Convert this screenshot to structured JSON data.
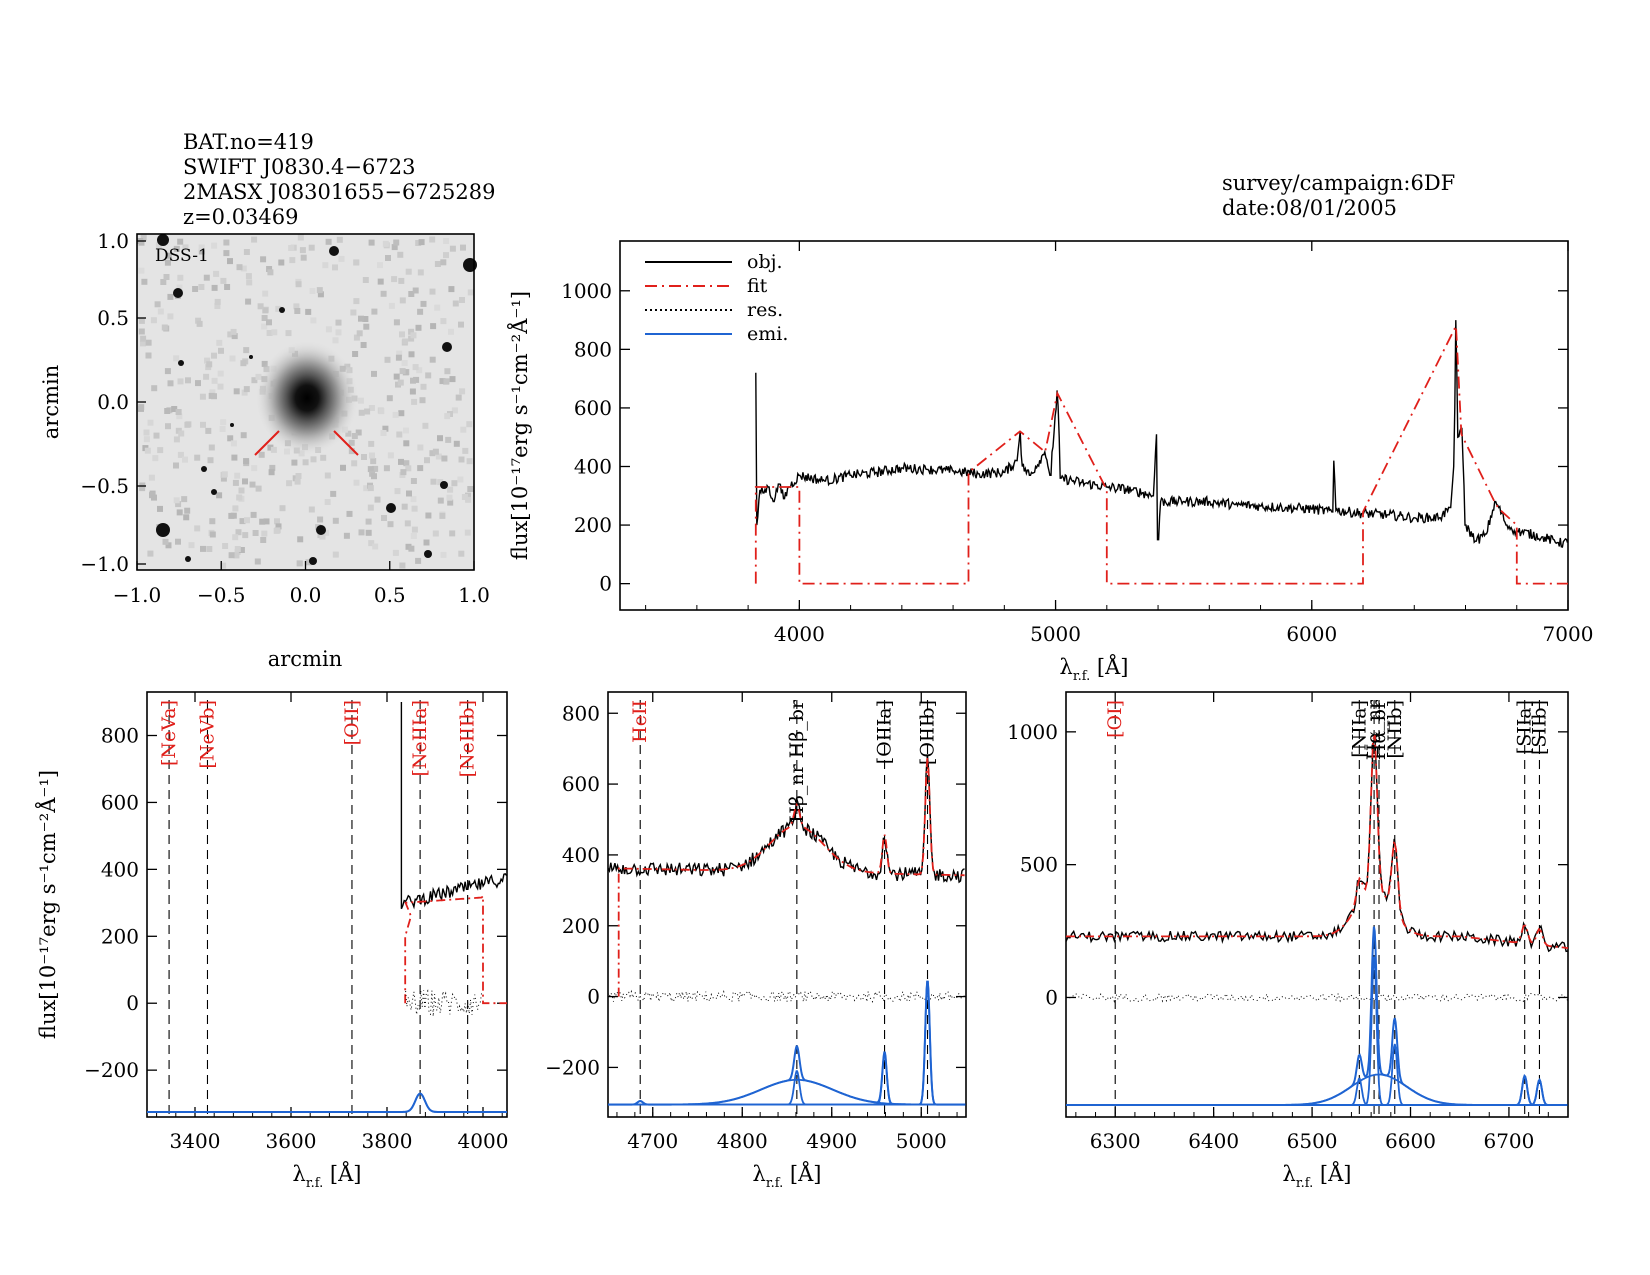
{
  "header_left": {
    "bat_no": "BAT.no=419",
    "swift_name": "SWIFT J0830.4−6723",
    "twomass_name": "2MASX J08301655−6725289",
    "redshift": "z=0.03469"
  },
  "header_right": {
    "survey": "survey/campaign:6DF",
    "date": "date:08/01/2005"
  },
  "colors": {
    "object": "#000000",
    "fit": "#e0201b",
    "residual": "#000000",
    "emission": "#1f64d2",
    "fit_label": "#e0201b"
  },
  "image_panel": {
    "label": "DSS-1",
    "xlabel": "arcmin",
    "ylabel": "arcmin",
    "xticks": [
      "−1.0",
      "−0.5",
      "0.0",
      "0.5",
      "1.0"
    ],
    "yticks": [
      "1.0",
      "0.5",
      "0.0",
      "−0.5",
      "−1.0"
    ]
  },
  "chart_data": [
    {
      "id": "full_spectrum",
      "type": "line",
      "xlabel": "λr.f. [Å]",
      "ylabel": "flux[10⁻¹⁷erg s⁻¹cm⁻²Å⁻¹]",
      "xlim": [
        3300,
        7000
      ],
      "ylim": [
        -90,
        1170
      ],
      "xticks": [
        4000,
        5000,
        6000,
        7000
      ],
      "yticks": [
        0,
        200,
        400,
        600,
        800,
        1000
      ],
      "legend": [
        "obj.",
        "fit",
        "res.",
        "emi."
      ],
      "legend_position": "top-left",
      "object_series": [
        [
          3830,
          720
        ],
        [
          3835,
          200
        ],
        [
          3845,
          320
        ],
        [
          3860,
          310
        ],
        [
          3880,
          330
        ],
        [
          3900,
          280
        ],
        [
          3920,
          340
        ],
        [
          3940,
          290
        ],
        [
          3960,
          330
        ],
        [
          4000,
          370
        ],
        [
          4100,
          350
        ],
        [
          4200,
          370
        ],
        [
          4300,
          380
        ],
        [
          4400,
          395
        ],
        [
          4500,
          390
        ],
        [
          4600,
          385
        ],
        [
          4700,
          375
        ],
        [
          4800,
          380
        ],
        [
          4850,
          420
        ],
        [
          4861,
          520
        ],
        [
          4870,
          400
        ],
        [
          4900,
          370
        ],
        [
          4959,
          450
        ],
        [
          4980,
          370
        ],
        [
          5007,
          660
        ],
        [
          5020,
          360
        ],
        [
          5100,
          345
        ],
        [
          5200,
          330
        ],
        [
          5300,
          320
        ],
        [
          5380,
          300
        ],
        [
          5395,
          510
        ],
        [
          5400,
          150
        ],
        [
          5410,
          280
        ],
        [
          5500,
          280
        ],
        [
          5600,
          280
        ],
        [
          5700,
          270
        ],
        [
          5800,
          265
        ],
        [
          5900,
          260
        ],
        [
          6000,
          255
        ],
        [
          6080,
          245
        ],
        [
          6087,
          420
        ],
        [
          6095,
          250
        ],
        [
          6200,
          240
        ],
        [
          6300,
          235
        ],
        [
          6400,
          225
        ],
        [
          6500,
          225
        ],
        [
          6540,
          260
        ],
        [
          6555,
          400
        ],
        [
          6563,
          900
        ],
        [
          6570,
          500
        ],
        [
          6584,
          530
        ],
        [
          6600,
          200
        ],
        [
          6640,
          145
        ],
        [
          6680,
          170
        ],
        [
          6716,
          280
        ],
        [
          6731,
          260
        ],
        [
          6760,
          200
        ],
        [
          6800,
          180
        ],
        [
          6900,
          160
        ],
        [
          6960,
          140
        ],
        [
          7000,
          140
        ]
      ],
      "fit_series": [
        [
          3830,
          0
        ],
        [
          3830,
          330
        ],
        [
          4000,
          330
        ],
        [
          4000,
          0
        ],
        [
          4660,
          0
        ],
        [
          4660,
          380
        ],
        [
          4861,
          520
        ],
        [
          4959,
          450
        ],
        [
          5007,
          650
        ],
        [
          5200,
          320
        ],
        [
          5200,
          0
        ],
        [
          6200,
          0
        ],
        [
          6200,
          245
        ],
        [
          6563,
          880
        ],
        [
          6584,
          510
        ],
        [
          6716,
          275
        ],
        [
          6731,
          255
        ],
        [
          6800,
          200
        ],
        [
          6800,
          0
        ],
        [
          7000,
          0
        ]
      ]
    },
    {
      "id": "neon_region",
      "type": "line",
      "xlabel": "λr.f. [Å]",
      "ylabel": "flux[10⁻¹⁷erg s⁻¹cm⁻²Å⁻¹]",
      "xlim": [
        3300,
        4050
      ],
      "ylim": [
        -340,
        930
      ],
      "xticks": [
        3400,
        3600,
        3800,
        4000
      ],
      "yticks": [
        -200,
        0,
        200,
        400,
        600,
        800
      ],
      "lines": [
        {
          "label": "[NeVa]",
          "x": 3346,
          "color": "red"
        },
        {
          "label": "[NeVb]",
          "x": 3426,
          "color": "red"
        },
        {
          "label": "[OII]",
          "x": 3727,
          "color": "red"
        },
        {
          "label": "[NeIIIa]",
          "x": 3869,
          "color": "red"
        },
        {
          "label": "[NeIIIb]",
          "x": 3968,
          "color": "red"
        }
      ],
      "emission_peaks": [
        {
          "center": 3869,
          "height": 55,
          "width": 10
        }
      ],
      "emission_baseline": -325
    },
    {
      "id": "hbeta_region",
      "type": "line",
      "xlabel": "λr.f. [Å]",
      "ylabel": "",
      "xlim": [
        4650,
        5050
      ],
      "ylim": [
        -340,
        860
      ],
      "xticks": [
        4700,
        4800,
        4900,
        5000
      ],
      "yticks": [
        -200,
        0,
        200,
        400,
        600,
        800
      ],
      "lines": [
        {
          "label": "HeII",
          "x": 4686,
          "color": "red"
        },
        {
          "label": "Hβ_nr Hβ_br",
          "x": 4861,
          "color": "black"
        },
        {
          "label": "[OIIIa]",
          "x": 4959,
          "color": "black"
        },
        {
          "label": "[OIIIb]",
          "x": 5007,
          "color": "black"
        }
      ],
      "emission_peaks": [
        {
          "center": 4861,
          "height": 95,
          "width": 3
        },
        {
          "center": 4861,
          "height": 70,
          "width": 40
        },
        {
          "center": 4959,
          "height": 145,
          "width": 2.5
        },
        {
          "center": 5007,
          "height": 350,
          "width": 2.5
        },
        {
          "center": 4686,
          "height": 10,
          "width": 3
        }
      ],
      "emission_baseline": -305
    },
    {
      "id": "halpha_region",
      "type": "line",
      "xlabel": "λr.f. [Å]",
      "ylabel": "",
      "xlim": [
        6250,
        6760
      ],
      "ylim": [
        -450,
        1150
      ],
      "xticks": [
        6300,
        6400,
        6500,
        6600,
        6700
      ],
      "yticks": [
        0,
        500,
        1000
      ],
      "lines": [
        {
          "label": "[OI]",
          "x": 6300,
          "color": "red"
        },
        {
          "label": "[NIIa]",
          "x": 6548,
          "color": "black"
        },
        {
          "label": "Hα_nr",
          "x": 6563,
          "color": "black"
        },
        {
          "label": "Hα_br",
          "x": 6568,
          "color": "black"
        },
        {
          "label": "[NIIb]",
          "x": 6584,
          "color": "black"
        },
        {
          "label": "[SIIa]",
          "x": 6716,
          "color": "black"
        },
        {
          "label": "[SIIb]",
          "x": 6731,
          "color": "black"
        }
      ],
      "emission_peaks": [
        {
          "center": 6563,
          "height": 560,
          "width": 2.5
        },
        {
          "center": 6568,
          "height": 115,
          "width": 28
        },
        {
          "center": 6548,
          "height": 100,
          "width": 2.5
        },
        {
          "center": 6584,
          "height": 230,
          "width": 2.5
        },
        {
          "center": 6716,
          "height": 110,
          "width": 2.5
        },
        {
          "center": 6731,
          "height": 95,
          "width": 2.5
        }
      ],
      "emission_baseline": -405
    }
  ]
}
